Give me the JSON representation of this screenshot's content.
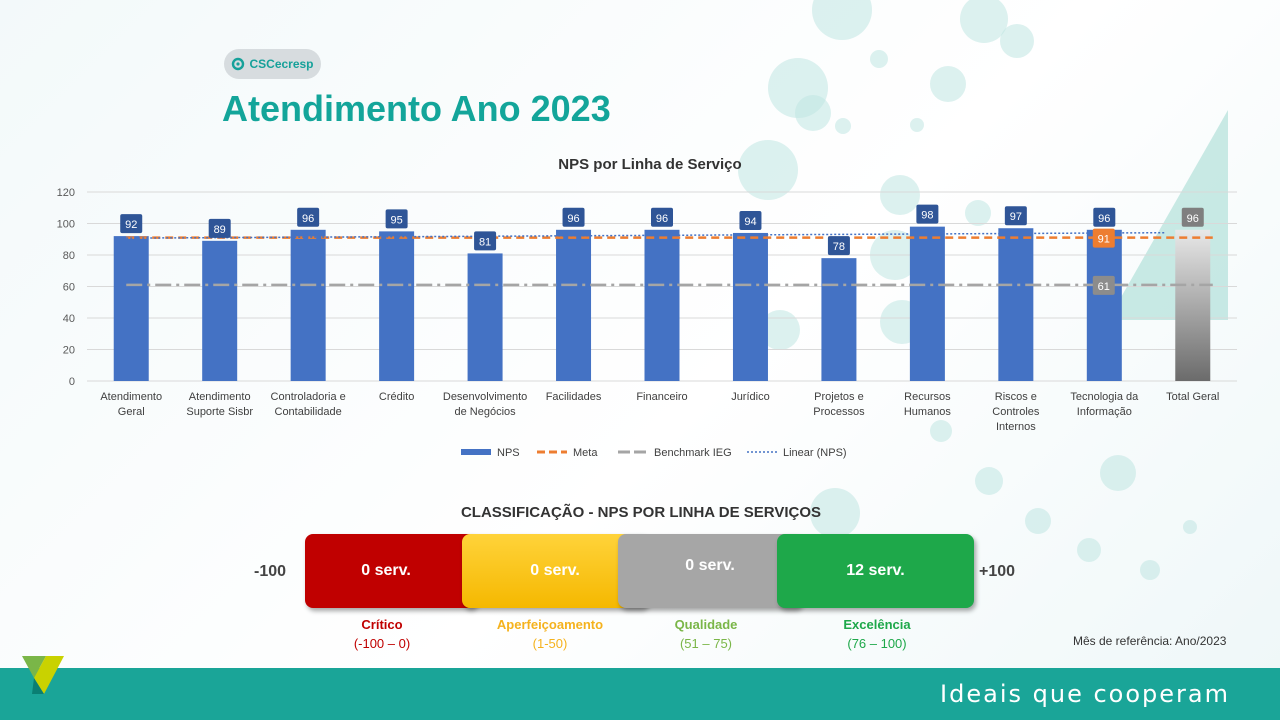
{
  "brand": {
    "logo_text": "CSCecresp",
    "tagline": "Ideais que cooperam",
    "accent": "#13a59a"
  },
  "slide_title": "Atendimento Ano 2023",
  "chart_data": {
    "type": "bar",
    "title": "NPS por Linha de Serviço",
    "ylim": [
      0,
      120
    ],
    "yticks": [
      0,
      20,
      40,
      60,
      80,
      100,
      120
    ],
    "grid": true,
    "legend_position": "bottom",
    "categories": [
      [
        "Atendimento",
        "Geral"
      ],
      [
        "Atendimento",
        "Suporte Sisbr"
      ],
      [
        "Controladoria e",
        "Contabilidade"
      ],
      [
        "Crédito"
      ],
      [
        "Desenvolvimento",
        "de Negócios"
      ],
      [
        "Facilidades"
      ],
      [
        "Financeiro"
      ],
      [
        "Jurídico"
      ],
      [
        "Projetos e",
        "Processos"
      ],
      [
        "Recursos",
        "Humanos"
      ],
      [
        "Riscos e",
        "Controles",
        "Internos"
      ],
      [
        "Tecnologia da",
        "Informação"
      ],
      [
        "Total Geral"
      ]
    ],
    "series": [
      {
        "name": "NPS",
        "values": [
          92,
          89,
          96,
          95,
          81,
          96,
          96,
          94,
          78,
          98,
          97,
          96,
          96
        ],
        "color": "#4472c4",
        "total_color": "#7f7f7f"
      },
      {
        "name": "Meta",
        "value": 91,
        "color": "#ed7d31"
      },
      {
        "name": "Benchmark IEG",
        "value": 61,
        "color": "#a5a5a5"
      },
      {
        "name": "Linear (NPS)",
        "color": "#4472c4"
      }
    ]
  },
  "classification": {
    "title": "CLASSIFICAÇÃO - NPS POR LINHA DE SERVIÇOS",
    "min_label": "-100",
    "max_label": "+100",
    "boxes": [
      {
        "count": "0 serv.",
        "label": "Crítico",
        "range": "(-100 – 0)",
        "color": "#c00000",
        "label_color": "#c00000"
      },
      {
        "count": "0 serv.",
        "label": "Aperfeiçoamento",
        "range": "(1-50)",
        "color": "#ffc000",
        "label_color": "#f5b21d"
      },
      {
        "count": "0 serv.",
        "label": "Qualidade",
        "range": "(51 – 75)",
        "color": "#a6a6a6",
        "label_color": "#7ab648"
      },
      {
        "count": "12 serv.",
        "label": "Excelência",
        "range": "(76 – 100)",
        "color": "#1ea84a",
        "label_color": "#1ea84a"
      }
    ]
  },
  "reference_note": "Mês de referência: Ano/2023"
}
